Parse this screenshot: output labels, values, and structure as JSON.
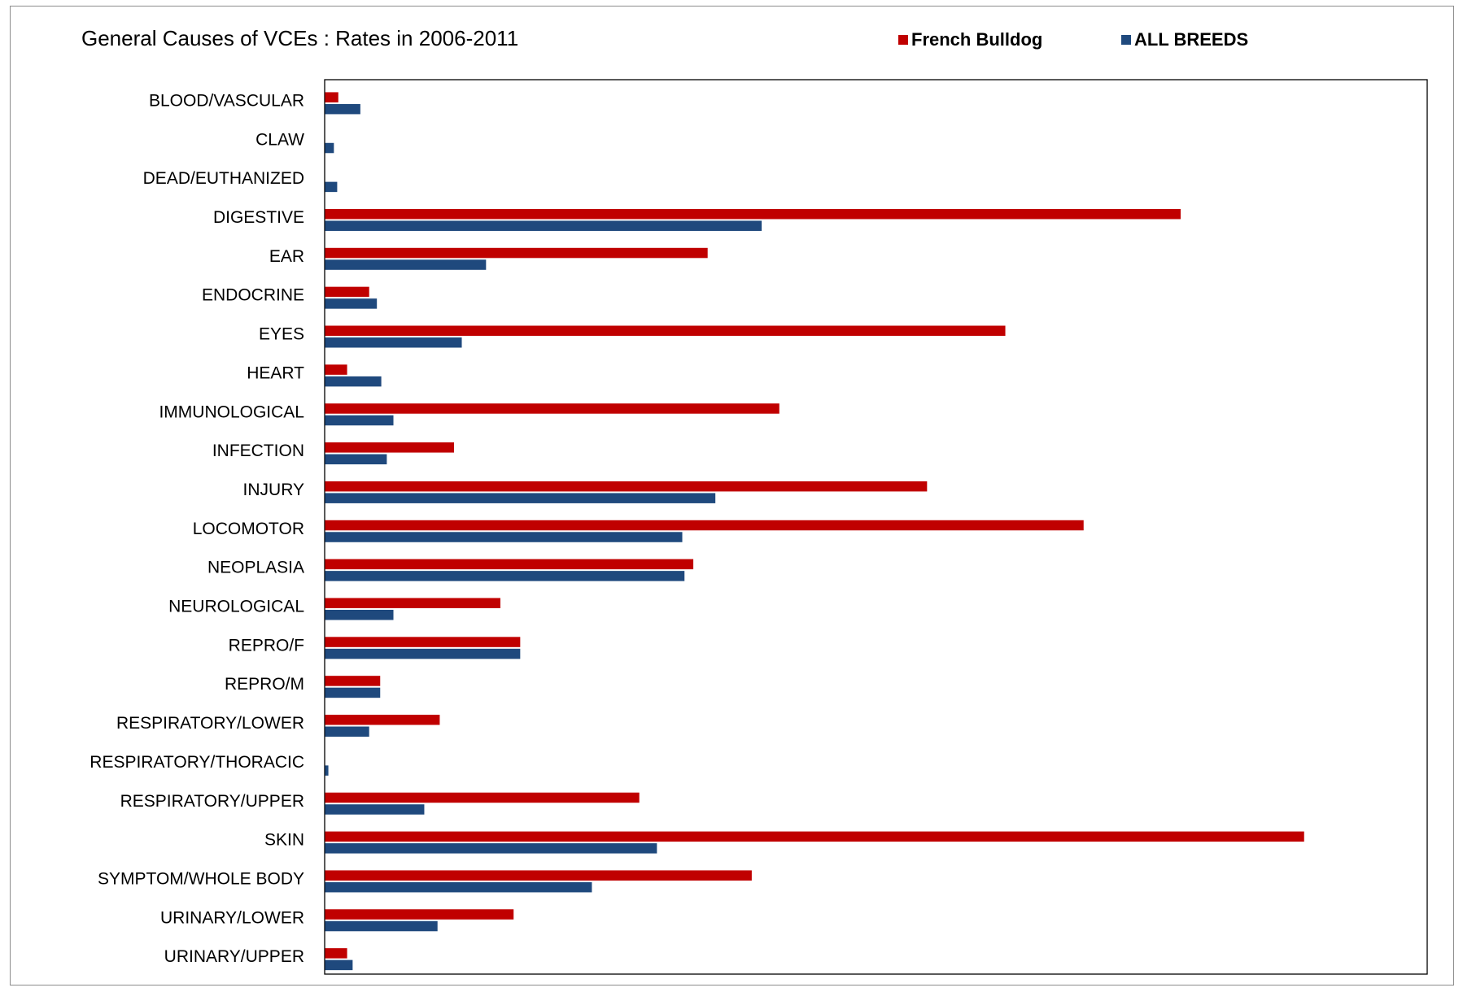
{
  "chart_data": {
    "type": "bar",
    "orientation": "horizontal",
    "title": "General Causes of VCEs : Rates in 2006-2011",
    "xlabel": "",
    "ylabel": "",
    "grid": false,
    "legend_position": "top-right",
    "categories": [
      "BLOOD/VASCULAR",
      "CLAW",
      "DEAD/EUTHANIZED",
      "DIGESTIVE",
      "EAR",
      "ENDOCRINE",
      "EYES",
      "HEART",
      "IMMUNOLOGICAL",
      "INFECTION",
      "INJURY",
      "LOCOMOTOR",
      "NEOPLASIA",
      "NEUROLOGICAL",
      "REPRO/F",
      "REPRO/M",
      "RESPIRATORY/LOWER",
      "RESPIRATORY/THORACIC",
      "RESPIRATORY/UPPER",
      "SKIN",
      "SYMPTOM/WHOLE BODY",
      "URINARY/LOWER",
      "URINARY/UPPER"
    ],
    "xlim": [
      0,
      100
    ],
    "series": [
      {
        "name": "French Bulldog",
        "color": "#c00000",
        "values": [
          1.2,
          0,
          0,
          77.6,
          34.7,
          4.0,
          61.7,
          2.0,
          41.2,
          11.7,
          54.6,
          68.8,
          33.4,
          15.9,
          17.7,
          5.0,
          10.4,
          0,
          28.5,
          88.8,
          38.7,
          17.1,
          2.0
        ]
      },
      {
        "name": "ALL BREEDS",
        "color": "#1f497d",
        "values": [
          3.2,
          0.8,
          1.1,
          39.6,
          14.6,
          4.7,
          12.4,
          5.1,
          6.2,
          5.6,
          35.4,
          32.4,
          32.6,
          6.2,
          17.7,
          5.0,
          4.0,
          0.3,
          9.0,
          30.1,
          24.2,
          10.2,
          2.5
        ]
      }
    ]
  }
}
